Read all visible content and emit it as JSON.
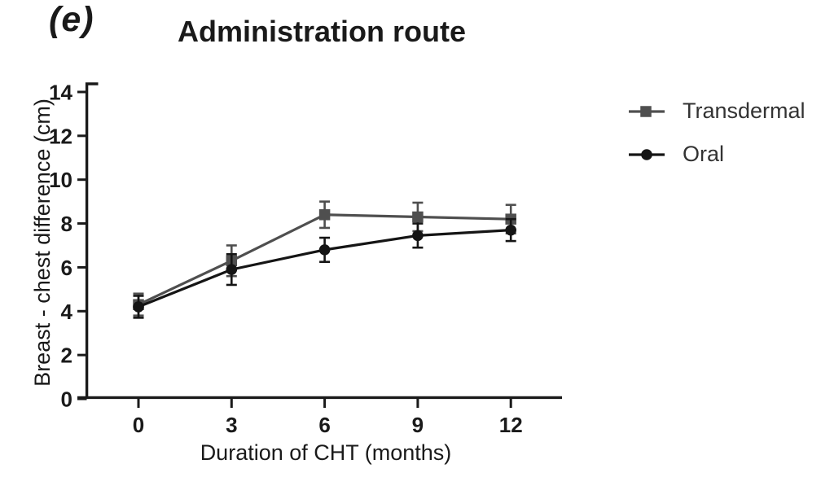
{
  "panel_label": "(e)",
  "chart": {
    "title": "Administration route",
    "xlabel": "Duration of CHT (months)",
    "ylabel": "Breast - chest difference (cm)"
  },
  "legend": {
    "position": "top-right",
    "items": [
      {
        "label": "Transdermal",
        "marker": "square",
        "color": "#4f4f4f"
      },
      {
        "label": "Oral",
        "marker": "circle",
        "color": "#151515"
      }
    ]
  },
  "colors": {
    "axis_ink": "#1a1a1a",
    "transdermal": "#4f4f4f",
    "oral": "#151515",
    "background": "#ffffff"
  },
  "chart_data": {
    "type": "line",
    "title": "Administration route",
    "xlabel": "Duration of CHT (months)",
    "ylabel": "Breast - chest difference (cm)",
    "x": [
      0,
      3,
      6,
      9,
      12
    ],
    "xticks": [
      0,
      3,
      6,
      9,
      12
    ],
    "yticks": [
      0,
      2,
      4,
      6,
      8,
      10,
      12,
      14
    ],
    "xlim": [
      -2,
      13.7
    ],
    "ylim": [
      0,
      14
    ],
    "grid": false,
    "error_bars": true,
    "legend_position": "top-right",
    "series": [
      {
        "name": "Transdermal",
        "marker": "square",
        "color": "#4f4f4f",
        "values": [
          4.3,
          6.3,
          8.4,
          8.3,
          8.2
        ],
        "errors": [
          0.5,
          0.7,
          0.6,
          0.65,
          0.65
        ]
      },
      {
        "name": "Oral",
        "marker": "circle",
        "color": "#151515",
        "values": [
          4.2,
          5.9,
          6.8,
          7.45,
          7.7
        ],
        "errors": [
          0.5,
          0.7,
          0.55,
          0.55,
          0.5
        ]
      }
    ]
  }
}
